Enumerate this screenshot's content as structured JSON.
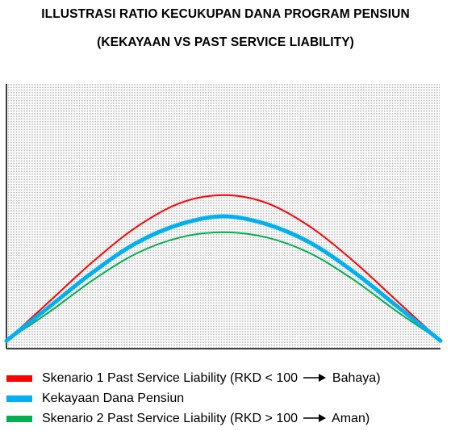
{
  "title_line1": "ILLUSTRASI RATIO KECUKUPAN DANA PROGRAM PENSIUN",
  "title_line2": "(KEKAYAAN VS PAST SERVICE LIABILITY)",
  "chart_data": {
    "type": "line",
    "title": "ILLUSTRASI RATIO KECUKUPAN DANA PROGRAM PENSIUN (KEKAYAAN VS PAST SERVICE LIABILITY)",
    "xlabel": "",
    "ylabel": "",
    "xlim": [
      0,
      1
    ],
    "ylim": [
      0,
      1
    ],
    "x": [
      0,
      0.1,
      0.2,
      0.3,
      0.4,
      0.5,
      0.6,
      0.7,
      0.8,
      0.9,
      1.0
    ],
    "grid": false,
    "legend_placement": "bottom",
    "series": [
      {
        "name": "Skenario 1 Past Service Liability (RKD < 100 → Bahaya)",
        "legend_prefix": "Skenario 1 Past Service Liability (RKD < 100 ",
        "legend_suffix": " Bahaya)",
        "color": "#ff0000",
        "width": 2,
        "values": [
          0.03,
          0.18,
          0.33,
          0.46,
          0.55,
          0.58,
          0.55,
          0.46,
          0.33,
          0.18,
          0.03
        ]
      },
      {
        "name": "Kekayaan Dana Pensiun",
        "legend_prefix": "Kekayaan Dana Pensiun",
        "legend_suffix": "",
        "color": "#00b0f0",
        "width": 5,
        "values": [
          0.03,
          0.16,
          0.29,
          0.4,
          0.47,
          0.5,
          0.47,
          0.4,
          0.29,
          0.16,
          0.03
        ]
      },
      {
        "name": "Skenario 2 Past Service Liability (RKD > 100 → Aman)",
        "legend_prefix": "Skenario 2 Past Service Liability (RKD > 100 ",
        "legend_suffix": " Aman)",
        "color": "#00b050",
        "width": 2,
        "values": [
          0.03,
          0.14,
          0.26,
          0.36,
          0.42,
          0.44,
          0.42,
          0.36,
          0.26,
          0.14,
          0.03
        ]
      }
    ],
    "plot_area_fill": "#d9d9d9",
    "plot_area_pattern": "dotted"
  }
}
